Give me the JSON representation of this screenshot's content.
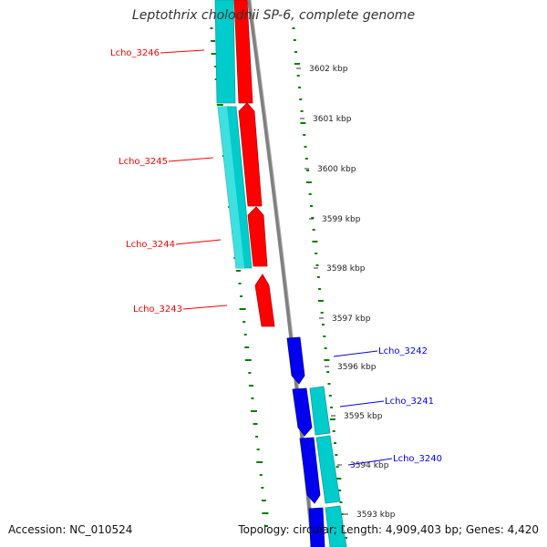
{
  "title": "Leptothrix cholodnii SP-6, complete genome",
  "footer": {
    "accession": "Accession: NC_010524",
    "summary": "Topology: circular; Length: 4,909,403 bp; Genes: 4,420"
  },
  "colors": {
    "forward_cds": "#ff0000",
    "reverse_cds": "#0000ff",
    "gene": "#00cccc",
    "backbone": "#808080",
    "gc_skew_ticks": "#008000"
  },
  "ruler": {
    "unit": "kbp",
    "ticks": [
      "3602 kbp",
      "3601 kbp",
      "3600 kbp",
      "3599 kbp",
      "3598 kbp",
      "3597 kbp",
      "3596 kbp",
      "3595 kbp",
      "3594 kbp",
      "3593 kbp"
    ]
  },
  "features": [
    {
      "label": "Lcho_3246",
      "strand": "forward",
      "icon": "gene-arrow"
    },
    {
      "label": "Lcho_3245",
      "strand": "forward",
      "icon": "gene-arrow"
    },
    {
      "label": "Lcho_3244",
      "strand": "forward",
      "icon": "gene-arrow"
    },
    {
      "label": "Lcho_3243",
      "strand": "forward",
      "icon": "gene-arrow"
    },
    {
      "label": "Lcho_3242",
      "strand": "reverse",
      "icon": "gene-arrow"
    },
    {
      "label": "Lcho_3241",
      "strand": "reverse",
      "icon": "gene-arrow"
    },
    {
      "label": "Lcho_3240",
      "strand": "reverse",
      "icon": "gene-arrow"
    }
  ]
}
